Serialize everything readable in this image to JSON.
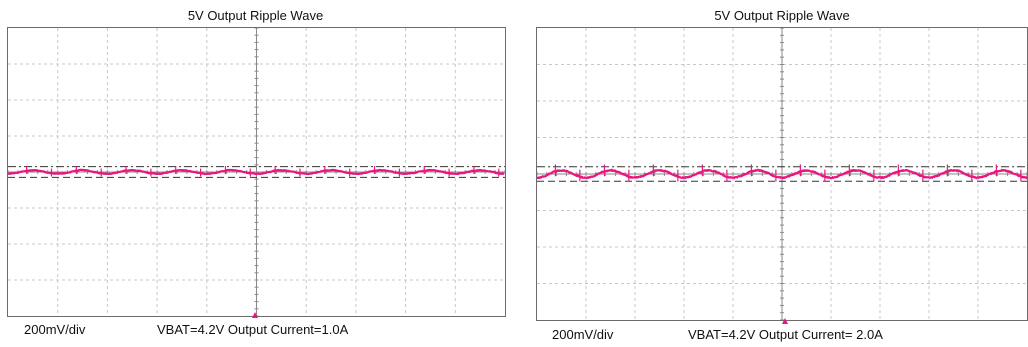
{
  "chart_data": [
    {
      "type": "line",
      "title": "5V Output Ripple Wave",
      "scale_label": "200mV/div",
      "condition_label": "VBAT=4.2V Output Current=1.0A",
      "trace_color": "#e8177f",
      "grid": true,
      "divisions": {
        "horizontal": 10,
        "vertical": 8
      },
      "volts_per_div": 0.2,
      "ylim": [
        -0.8,
        0.8
      ],
      "cursors_mV": [
        30,
        -30
      ],
      "ripple_cycles": 10,
      "ripple_amplitude_mV": 10,
      "noise_band_mV": 14,
      "spike_count": 20,
      "spike_amplitude_mV": 26
    },
    {
      "type": "line",
      "title": "5V Output Ripple Wave",
      "scale_label": "200mV/div",
      "condition_label": "VBAT=4.2V Output Current= 2.0A",
      "trace_color": "#e8177f",
      "grid": true,
      "divisions": {
        "horizontal": 10,
        "vertical": 8
      },
      "volts_per_div": 0.2,
      "ylim": [
        -0.8,
        0.8
      ],
      "cursors_mV": [
        40,
        -40
      ],
      "ripple_cycles": 10,
      "ripple_amplitude_mV": 20,
      "noise_band_mV": 18,
      "spike_count": 20,
      "spike_amplitude_mV": 38
    }
  ]
}
